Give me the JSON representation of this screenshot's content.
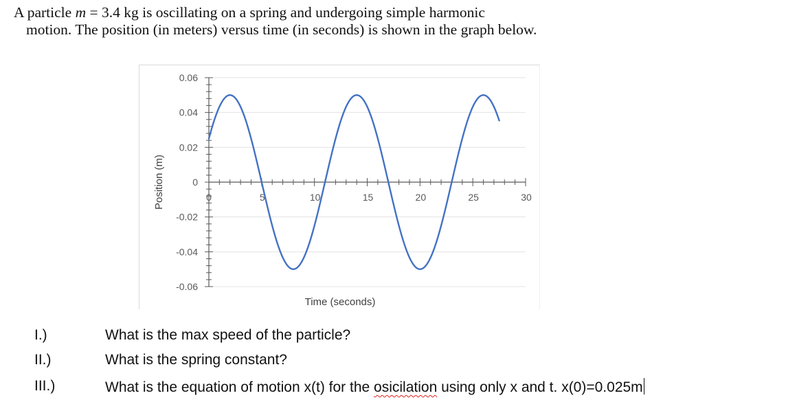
{
  "problem": {
    "line1_prefix": "A particle ",
    "mass_symbol": "m",
    "line1_suffix": " = 3.4 kg is oscillating on a spring and undergoing simple harmonic",
    "line2": "motion. The position (in meters) versus time (in seconds) is shown in the graph below."
  },
  "questions": [
    {
      "num": "I.)",
      "text": "What is the max speed of the particle?"
    },
    {
      "num": "II.)",
      "text": "What is the spring constant?"
    },
    {
      "num": "III.)",
      "text_before": "What is the equation of motion x(t) for the ",
      "misspelled": "osicilation",
      "text_after": " using only x and t. x(0)=0.025m"
    }
  ],
  "chart_data": {
    "type": "line",
    "title": "",
    "xlabel": "Time (seconds)",
    "ylabel": "Position (m)",
    "xlim": [
      0,
      30
    ],
    "ylim": [
      -0.06,
      0.06
    ],
    "x_ticks": [
      0,
      5,
      10,
      15,
      20,
      25,
      30
    ],
    "x_tick_labels": [
      "0",
      "5",
      "10",
      "15",
      "20",
      "25",
      "30"
    ],
    "y_ticks": [
      0.06,
      0.04,
      0.02,
      0,
      -0.02,
      -0.04,
      -0.06
    ],
    "y_tick_labels": [
      "0.06",
      "0.04",
      "0.02",
      "0",
      "-0.02",
      "-0.04",
      "-0.06"
    ],
    "grid": "horizontal",
    "legend": "none",
    "line_color": "#4472C4",
    "series": [
      {
        "name": "Position",
        "function": "x(t) = 0.05 cos(pi*t/6 - pi/3)",
        "amplitude": 0.05,
        "period": 12,
        "t_start": 0,
        "t_end": 27.5,
        "key_points": [
          {
            "t": 0,
            "x": 0.025
          },
          {
            "t": 2,
            "x": 0.05
          },
          {
            "t": 5,
            "x": 0
          },
          {
            "t": 8,
            "x": -0.05
          },
          {
            "t": 11,
            "x": 0
          },
          {
            "t": 14,
            "x": 0.05
          },
          {
            "t": 17,
            "x": 0
          },
          {
            "t": 20,
            "x": -0.05
          },
          {
            "t": 23,
            "x": 0
          },
          {
            "t": 26,
            "x": 0.05
          },
          {
            "t": 27.5,
            "x": 0.035
          }
        ]
      }
    ]
  }
}
